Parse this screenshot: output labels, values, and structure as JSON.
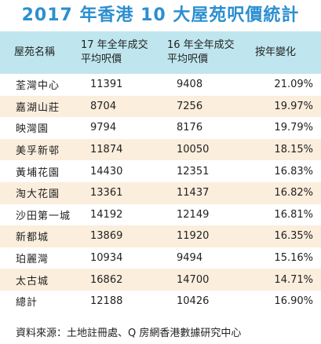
{
  "title": "2017 年香港 10 大屋苑呎價統計",
  "source": "資料來源：土地註冊處、Q 房網香港數據研究中心",
  "chart_data": {
    "type": "table",
    "title": "2017 年香港 10 大屋苑呎價統計",
    "headers": [
      [
        "屋苑名稱"
      ],
      [
        "17 年全年成交",
        "平均呎價"
      ],
      [
        "16 年全年成交",
        "平均呎價"
      ],
      [
        "按年變化"
      ]
    ],
    "rows": [
      [
        "荃灣中心",
        "11391",
        "9408",
        "21.09%"
      ],
      [
        "嘉湖山莊",
        "8704",
        "7256",
        "19.97%"
      ],
      [
        "映灣園",
        "9794",
        "8176",
        "19.79%"
      ],
      [
        "美孚新邨",
        "11874",
        "10050",
        "18.15%"
      ],
      [
        "黃埔花園",
        "14430",
        "12351",
        "16.83%"
      ],
      [
        "淘大花園",
        "13361",
        "11437",
        "16.82%"
      ],
      [
        "沙田第一城",
        "14192",
        "12149",
        "16.81%"
      ],
      [
        "新都城",
        "13869",
        "11920",
        "16.35%"
      ],
      [
        "珀麗灣",
        "10934",
        "9494",
        "15.16%"
      ],
      [
        "太古城",
        "16862",
        "14700",
        "14.71%"
      ],
      [
        "總計",
        "12188",
        "10426",
        "16.90%"
      ]
    ]
  }
}
